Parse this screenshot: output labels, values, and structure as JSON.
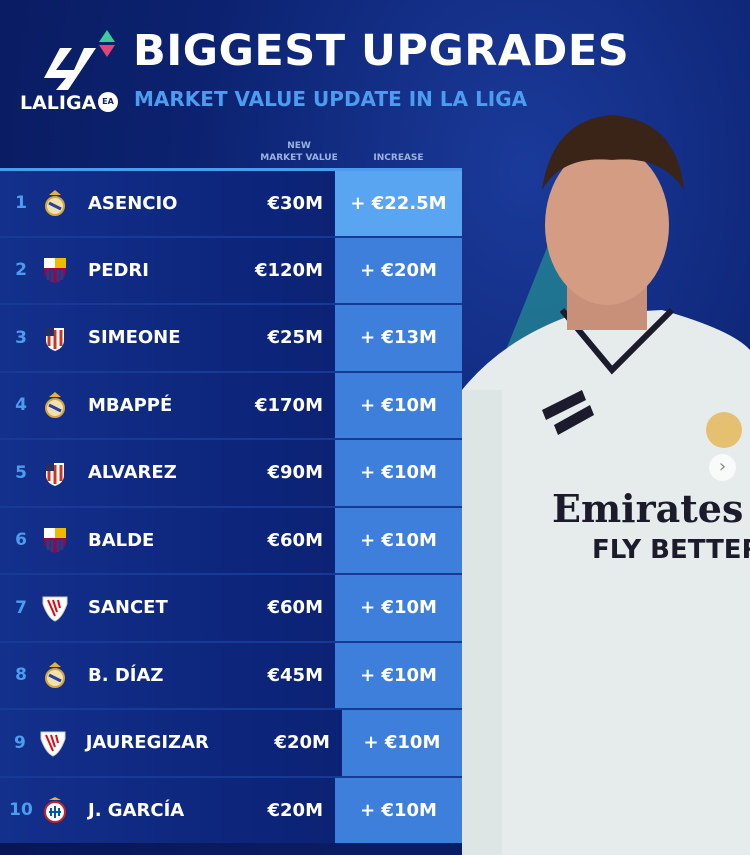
{
  "header": {
    "brand": "LALIGA",
    "brand_badge": "EA",
    "title": "BIGGEST UPGRADES",
    "subtitle": "MARKET VALUE UPDATE IN LA LIGA"
  },
  "columns": {
    "new_value": "NEW\nMARKET VALUE",
    "increase": "INCREASE"
  },
  "colors": {
    "accent": "#4c9cf0",
    "row_bg": "#0c2479",
    "increase_bg": "#3f7fdc",
    "top_increase_bg": "#5aa5f2"
  },
  "rows": [
    {
      "rank": "1",
      "club": "real-madrid",
      "name": "ASENCIO",
      "value": "€30M",
      "increase": "+ €22.5M"
    },
    {
      "rank": "2",
      "club": "barcelona",
      "name": "PEDRI",
      "value": "€120M",
      "increase": "+ €20M"
    },
    {
      "rank": "3",
      "club": "atletico",
      "name": "SIMEONE",
      "value": "€25M",
      "increase": "+ €13M"
    },
    {
      "rank": "4",
      "club": "real-madrid",
      "name": "MBAPPÉ",
      "value": "€170M",
      "increase": "+ €10M"
    },
    {
      "rank": "5",
      "club": "atletico",
      "name": "ALVAREZ",
      "value": "€90M",
      "increase": "+ €10M"
    },
    {
      "rank": "6",
      "club": "barcelona",
      "name": "BALDE",
      "value": "€60M",
      "increase": "+ €10M"
    },
    {
      "rank": "7",
      "club": "athletic",
      "name": "SANCET",
      "value": "€60M",
      "increase": "+ €10M"
    },
    {
      "rank": "8",
      "club": "real-madrid",
      "name": "B. DÍAZ",
      "value": "€45M",
      "increase": "+ €10M"
    },
    {
      "rank": "9",
      "club": "athletic",
      "name": "JAUREGIZAR",
      "value": "€20M",
      "increase": "+ €10M"
    },
    {
      "rank": "10",
      "club": "espanyol",
      "name": "J. GARCÍA",
      "value": "€20M",
      "increase": "+ €10M"
    }
  ],
  "photo": {
    "sponsor": "Emirates",
    "slogan": "FLY BETTER"
  }
}
